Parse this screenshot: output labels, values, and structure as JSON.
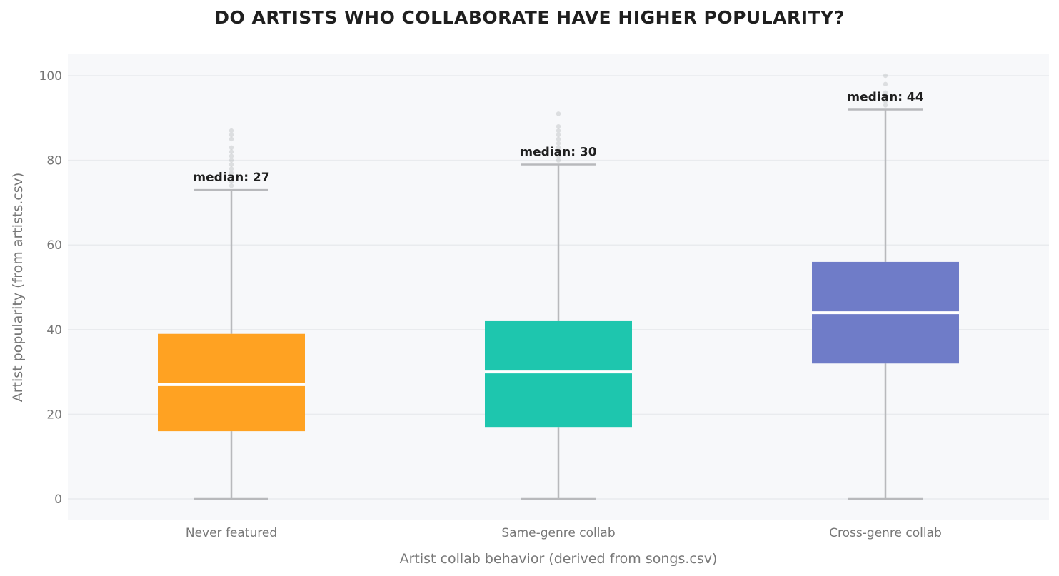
{
  "chart_data": {
    "type": "box",
    "title": "DO ARTISTS WHO COLLABORATE HAVE HIGHER POPULARITY?",
    "xlabel": "Artist collab behavior (derived from songs.csv)",
    "ylabel": "Artist popularity (from artists.csv)",
    "ylim": [
      -5,
      105
    ],
    "yticks": [
      0,
      20,
      40,
      60,
      80,
      100
    ],
    "grid": "horizontal",
    "categories": [
      "Never featured",
      "Same-genre collab",
      "Cross-genre collab"
    ],
    "boxes": [
      {
        "category": "Never featured",
        "min": 0,
        "q1": 16,
        "median": 27,
        "q3": 39,
        "max": 73,
        "color": "#FFA222",
        "median_label": "median: 27",
        "outliers": [
          74,
          75,
          76,
          77,
          78,
          79,
          80,
          81,
          82,
          83,
          85,
          86,
          87
        ]
      },
      {
        "category": "Same-genre collab",
        "min": 0,
        "q1": 17,
        "median": 30,
        "q3": 42,
        "max": 79,
        "color": "#1EC6AE",
        "median_label": "median: 30",
        "outliers": [
          80,
          81,
          82,
          83,
          84,
          85,
          86,
          87,
          88,
          91
        ]
      },
      {
        "category": "Cross-genre collab",
        "min": 0,
        "q1": 32,
        "median": 44,
        "q3": 56,
        "max": 92,
        "color": "#6F7CC8",
        "median_label": "median: 44",
        "outliers": [
          93,
          94,
          95,
          96,
          98,
          100
        ]
      }
    ],
    "colors": {
      "plot_background": "#F7F8FA",
      "grid": "#E9EBEE",
      "whisker": "#B8B9BC",
      "outlier": "#9EA1A6",
      "median_line": "#FFFFFF"
    }
  }
}
